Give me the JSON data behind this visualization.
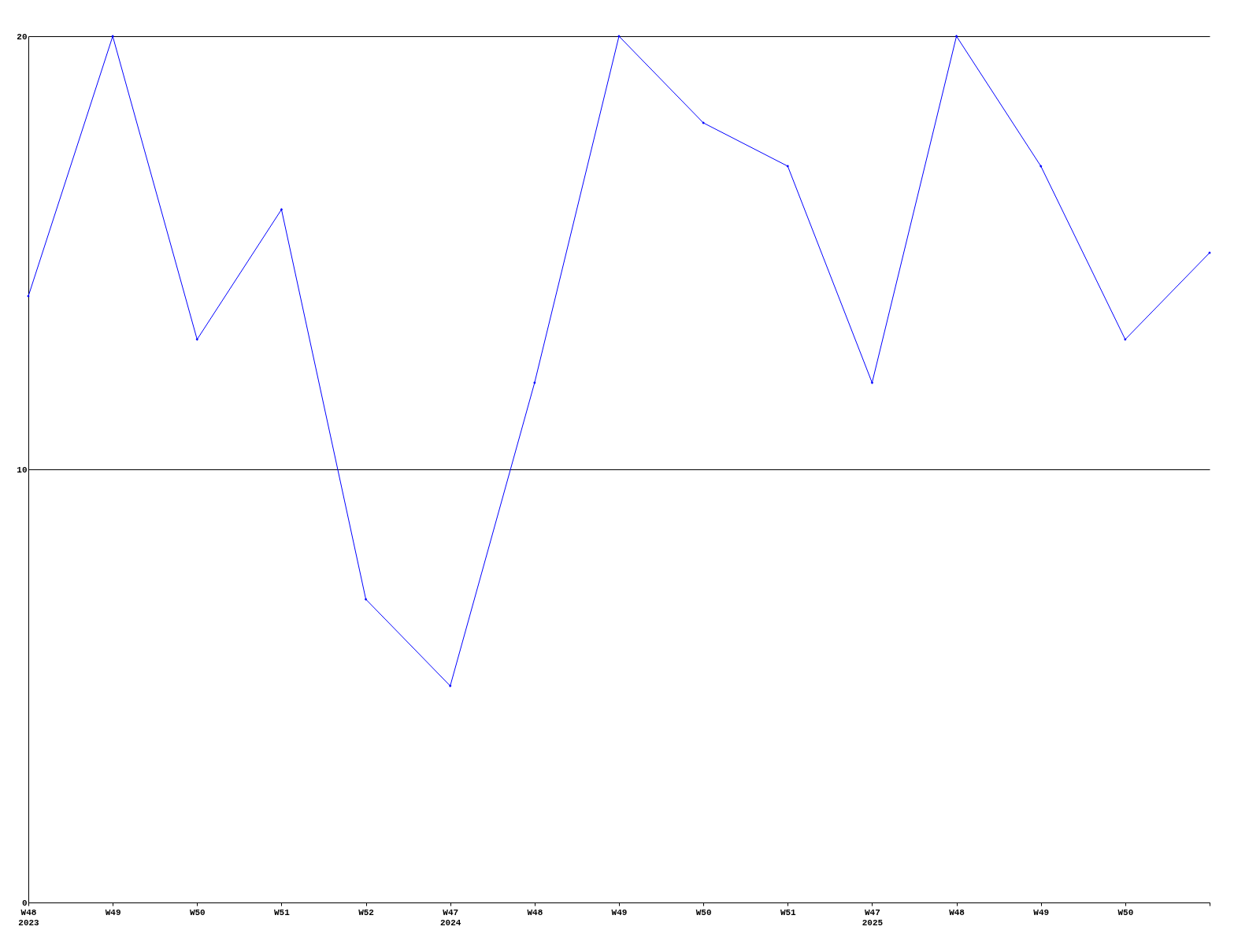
{
  "chart_data": {
    "type": "line",
    "categories": [
      "W48\n2023",
      "W49",
      "W50",
      "W51",
      "W52",
      "W47\n2024",
      "W48",
      "W49",
      "W50",
      "W51",
      "W47\n2025",
      "W48",
      "W49",
      "W50",
      null
    ],
    "series": [
      {
        "color": "#0000ff",
        "values": [
          14,
          20,
          13,
          16,
          7,
          5,
          12,
          20,
          18,
          17,
          12,
          20,
          17,
          13,
          15
        ]
      }
    ],
    "ylim": [
      0,
      20
    ],
    "yticks": [
      0,
      10,
      20
    ],
    "grid": "y",
    "marker": "diamond",
    "line_style": "solid"
  }
}
